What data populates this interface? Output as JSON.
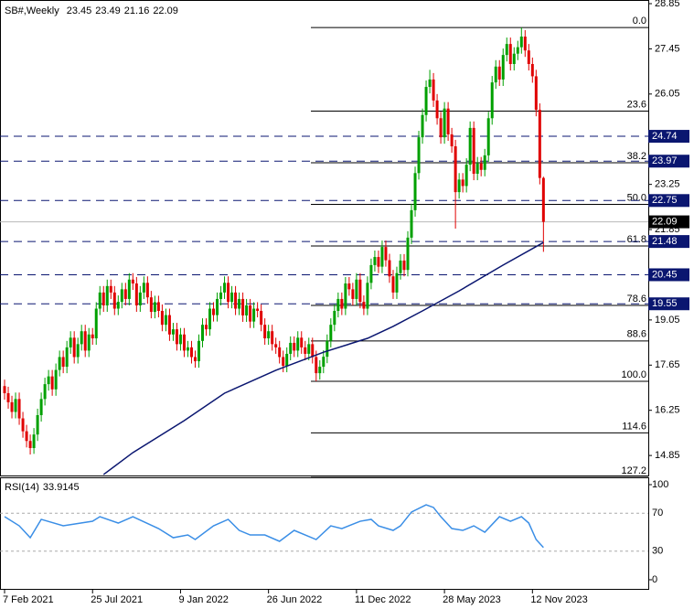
{
  "chart_data": {
    "type": "candlestick",
    "symbol": "SB#,Weekly",
    "up_color": "#00a000",
    "down_color": "#e00000",
    "ylim": [
      14.23,
      28.85
    ],
    "yticks": [
      28.85,
      27.45,
      26.05,
      23.25,
      21.85,
      19.05,
      17.65,
      16.25,
      14.85
    ],
    "xlim": [
      -1.25,
      175.6
    ],
    "xticks": [
      {
        "value": 0,
        "label": "7 Feb 2021"
      },
      {
        "value": 24,
        "label": "25 Jul 2021"
      },
      {
        "value": 48,
        "label": "9 Jan 2022"
      },
      {
        "value": 72,
        "label": "26 Jun 2022"
      },
      {
        "value": 96,
        "label": "11 Dec 2022"
      },
      {
        "value": 120,
        "label": "28 May 2023"
      },
      {
        "value": 144,
        "label": "12 Nov 2023"
      }
    ],
    "candles": [
      [
        17.0,
        17.2,
        16.58,
        16.78
      ],
      [
        16.78,
        16.98,
        16.3,
        16.5
      ],
      [
        16.5,
        16.7,
        16.0,
        16.2
      ],
      [
        16.2,
        16.8,
        16.0,
        16.6
      ],
      [
        16.6,
        16.8,
        15.8,
        16.0
      ],
      [
        16.0,
        16.2,
        15.4,
        15.6
      ],
      [
        15.6,
        15.8,
        15.1,
        15.3
      ],
      [
        15.3,
        15.5,
        14.88,
        15.08
      ],
      [
        15.08,
        15.7,
        14.9,
        15.5
      ],
      [
        15.5,
        16.3,
        15.3,
        16.1
      ],
      [
        16.1,
        16.8,
        15.9,
        16.6
      ],
      [
        16.6,
        17.26,
        16.4,
        17.06
      ],
      [
        17.06,
        17.5,
        16.86,
        17.3
      ],
      [
        17.3,
        17.5,
        16.7,
        16.9
      ],
      [
        16.9,
        17.7,
        16.7,
        17.5
      ],
      [
        17.5,
        18.1,
        17.3,
        17.9
      ],
      [
        17.9,
        18.1,
        17.4,
        17.6
      ],
      [
        17.6,
        18.4,
        17.4,
        18.2
      ],
      [
        18.2,
        18.7,
        18.0,
        18.5
      ],
      [
        18.5,
        18.7,
        17.7,
        17.9
      ],
      [
        17.9,
        18.5,
        17.7,
        18.3
      ],
      [
        18.3,
        18.9,
        18.1,
        18.7
      ],
      [
        18.7,
        18.9,
        17.9,
        18.1
      ],
      [
        18.1,
        18.8,
        17.9,
        18.6
      ],
      [
        18.6,
        18.8,
        18.28,
        18.48
      ],
      [
        18.48,
        19.6,
        18.28,
        19.4
      ],
      [
        19.4,
        20.1,
        19.2,
        19.9
      ],
      [
        19.9,
        20.1,
        19.3,
        19.5
      ],
      [
        19.5,
        20.3,
        19.3,
        20.1
      ],
      [
        20.1,
        20.3,
        19.7,
        19.9
      ],
      [
        19.9,
        20.1,
        19.2,
        19.4
      ],
      [
        19.4,
        19.81,
        19.2,
        19.61
      ],
      [
        19.61,
        20.2,
        19.41,
        20.0
      ],
      [
        20.0,
        20.2,
        19.5,
        19.7
      ],
      [
        19.7,
        20.5,
        19.5,
        20.3
      ],
      [
        20.3,
        20.5,
        19.98,
        20.18
      ],
      [
        20.18,
        20.38,
        19.3,
        19.5
      ],
      [
        19.5,
        20.1,
        19.3,
        19.9
      ],
      [
        19.9,
        20.4,
        19.7,
        20.2
      ],
      [
        20.2,
        20.4,
        19.55,
        19.75
      ],
      [
        19.75,
        19.95,
        19.1,
        19.3
      ],
      [
        19.3,
        19.8,
        19.1,
        19.6
      ],
      [
        19.6,
        19.8,
        19.13,
        19.33
      ],
      [
        19.33,
        19.53,
        18.7,
        18.9
      ],
      [
        18.9,
        19.4,
        18.7,
        19.2
      ],
      [
        19.2,
        19.4,
        18.4,
        18.6
      ],
      [
        18.6,
        18.96,
        18.4,
        18.76
      ],
      [
        18.76,
        18.96,
        18.1,
        18.3
      ],
      [
        18.3,
        18.8,
        18.1,
        18.6
      ],
      [
        18.6,
        18.8,
        17.9,
        18.1
      ],
      [
        18.1,
        18.4,
        17.9,
        18.2
      ],
      [
        18.2,
        18.4,
        17.7,
        17.9
      ],
      [
        17.9,
        18.1,
        17.57,
        17.77
      ],
      [
        17.77,
        18.6,
        17.57,
        18.4
      ],
      [
        18.4,
        19.1,
        18.2,
        18.9
      ],
      [
        18.9,
        19.1,
        18.56,
        18.76
      ],
      [
        18.76,
        19.6,
        18.56,
        19.4
      ],
      [
        19.4,
        19.6,
        19.0,
        19.2
      ],
      [
        19.2,
        19.9,
        19.0,
        19.7
      ],
      [
        19.7,
        20.1,
        19.5,
        19.9
      ],
      [
        19.9,
        20.4,
        19.7,
        20.2
      ],
      [
        20.2,
        20.4,
        19.41,
        19.61
      ],
      [
        19.61,
        20.1,
        19.41,
        19.9
      ],
      [
        19.9,
        20.1,
        19.2,
        19.4
      ],
      [
        19.4,
        19.9,
        19.2,
        19.7
      ],
      [
        19.7,
        19.9,
        18.99,
        19.19
      ],
      [
        19.19,
        19.7,
        18.99,
        19.5
      ],
      [
        19.5,
        19.7,
        18.8,
        19.0
      ],
      [
        19.0,
        19.6,
        18.8,
        19.4
      ],
      [
        19.4,
        19.6,
        19.13,
        19.33
      ],
      [
        19.33,
        19.53,
        18.7,
        18.9
      ],
      [
        18.9,
        19.1,
        18.28,
        18.48
      ],
      [
        18.48,
        18.9,
        18.28,
        18.7
      ],
      [
        18.7,
        18.9,
        18.1,
        18.3
      ],
      [
        18.3,
        18.5,
        18.0,
        18.2
      ],
      [
        18.2,
        18.4,
        17.7,
        17.9
      ],
      [
        17.9,
        18.1,
        17.43,
        17.63
      ],
      [
        17.63,
        18.2,
        17.43,
        18.0
      ],
      [
        18.0,
        18.54,
        17.8,
        18.34
      ],
      [
        18.34,
        18.54,
        17.9,
        18.1
      ],
      [
        18.1,
        18.7,
        17.9,
        18.5
      ],
      [
        18.5,
        18.7,
        18.0,
        18.2
      ],
      [
        18.2,
        18.4,
        17.8,
        18.0
      ],
      [
        18.0,
        18.5,
        17.8,
        18.3
      ],
      [
        18.3,
        18.5,
        17.7,
        17.9
      ],
      [
        17.9,
        18.1,
        17.15,
        17.4
      ],
      [
        17.4,
        17.8,
        17.2,
        17.6
      ],
      [
        17.6,
        18.11,
        17.4,
        17.91
      ],
      [
        17.91,
        18.6,
        17.71,
        18.4
      ],
      [
        18.4,
        19.1,
        18.2,
        18.9
      ],
      [
        18.9,
        19.53,
        18.7,
        19.33
      ],
      [
        19.33,
        19.9,
        19.13,
        19.7
      ],
      [
        19.7,
        19.9,
        19.2,
        19.4
      ],
      [
        19.4,
        20.38,
        19.2,
        20.18
      ],
      [
        20.18,
        20.38,
        19.8,
        20.0
      ],
      [
        20.0,
        20.2,
        19.5,
        19.7
      ],
      [
        19.7,
        20.5,
        19.5,
        20.3
      ],
      [
        20.3,
        20.5,
        19.41,
        19.61
      ],
      [
        19.61,
        19.81,
        19.2,
        19.4
      ],
      [
        19.4,
        20.4,
        19.2,
        20.2
      ],
      [
        20.2,
        20.95,
        20.0,
        20.75
      ],
      [
        20.75,
        21.2,
        20.55,
        21.0
      ],
      [
        21.0,
        21.2,
        20.5,
        20.7
      ],
      [
        20.7,
        21.51,
        20.5,
        21.31
      ],
      [
        21.31,
        21.51,
        20.7,
        20.9
      ],
      [
        20.9,
        21.1,
        20.2,
        20.4
      ],
      [
        20.4,
        20.6,
        19.7,
        19.9
      ],
      [
        19.9,
        20.7,
        19.7,
        20.5
      ],
      [
        20.5,
        21.09,
        20.3,
        20.89
      ],
      [
        20.89,
        21.09,
        20.4,
        20.6
      ],
      [
        20.6,
        21.8,
        20.4,
        21.6
      ],
      [
        21.6,
        22.65,
        21.4,
        22.45
      ],
      [
        22.45,
        23.8,
        22.25,
        23.6
      ],
      [
        23.6,
        24.91,
        23.4,
        24.71
      ],
      [
        24.71,
        25.6,
        24.51,
        25.4
      ],
      [
        25.4,
        26.47,
        25.2,
        26.27
      ],
      [
        26.27,
        26.8,
        26.07,
        26.5
      ],
      [
        26.5,
        26.7,
        25.65,
        25.85
      ],
      [
        25.85,
        26.05,
        25.1,
        25.3
      ],
      [
        25.3,
        25.5,
        24.51,
        24.71
      ],
      [
        24.71,
        25.8,
        24.51,
        25.6
      ],
      [
        25.6,
        25.8,
        24.6,
        24.8
      ],
      [
        24.8,
        25.0,
        24.23,
        24.43
      ],
      [
        24.43,
        24.63,
        21.88,
        23.01
      ],
      [
        23.01,
        23.6,
        22.81,
        23.4
      ],
      [
        23.4,
        23.6,
        23.0,
        23.2
      ],
      [
        23.2,
        24.06,
        23.0,
        23.86
      ],
      [
        23.86,
        25.2,
        23.66,
        25.0
      ],
      [
        25.0,
        25.2,
        23.38,
        23.58
      ],
      [
        23.58,
        24.1,
        23.38,
        23.9
      ],
      [
        23.9,
        24.1,
        23.5,
        23.7
      ],
      [
        23.7,
        24.35,
        23.5,
        24.15
      ],
      [
        24.15,
        25.5,
        23.95,
        25.3
      ],
      [
        25.3,
        26.61,
        25.1,
        26.41
      ],
      [
        26.41,
        27.1,
        26.21,
        26.9
      ],
      [
        26.9,
        27.1,
        26.3,
        26.5
      ],
      [
        26.5,
        27.46,
        26.3,
        27.26
      ],
      [
        27.26,
        27.8,
        27.06,
        27.6
      ],
      [
        27.6,
        27.8,
        26.78,
        26.98
      ],
      [
        26.98,
        27.5,
        26.78,
        27.3
      ],
      [
        27.3,
        27.7,
        27.1,
        27.5
      ],
      [
        27.5,
        28.11,
        27.3,
        27.83
      ],
      [
        27.83,
        28.03,
        27.2,
        27.4
      ],
      [
        27.4,
        27.6,
        26.78,
        26.98
      ],
      [
        26.98,
        27.18,
        26.4,
        26.6
      ],
      [
        26.6,
        26.8,
        25.36,
        25.56
      ],
      [
        25.56,
        25.76,
        23.25,
        23.45
      ],
      [
        23.45,
        23.49,
        21.16,
        22.09
      ]
    ],
    "ma": {
      "color": "#0a1670",
      "x": [
        27,
        35,
        49,
        60,
        74,
        87,
        99,
        106,
        114,
        124,
        136,
        147
      ],
      "values": [
        14.26,
        14.94,
        15.93,
        16.78,
        17.49,
        18.05,
        18.48,
        18.85,
        19.33,
        19.95,
        20.75,
        21.45
      ]
    },
    "levels": {
      "color": "#0a1670",
      "values": [
        24.74,
        23.97,
        22.75,
        21.48,
        20.45,
        19.55
      ]
    },
    "fib": [
      {
        "label": "0.0",
        "price": 28.11
      },
      {
        "label": "23.6",
        "price": 25.52
      },
      {
        "label": "38.2",
        "price": 23.92
      },
      {
        "label": "50.0",
        "price": 22.63
      },
      {
        "label": "61.8",
        "price": 21.34
      },
      {
        "label": "78.6",
        "price": 19.5
      },
      {
        "label": "88.6",
        "price": 18.4
      },
      {
        "label": "100.0",
        "price": 17.15
      },
      {
        "label": "114.6",
        "price": 15.55
      },
      {
        "label": "127.2",
        "price": 14.17
      }
    ],
    "rsi": {
      "title": "RSI(14)",
      "color": "#3a8ee6",
      "ylim": [
        0,
        100
      ],
      "yticks": [
        0,
        30,
        70,
        100
      ],
      "x": [
        0,
        4,
        7,
        10,
        16,
        24,
        26,
        31,
        35,
        42,
        46,
        50,
        52,
        57,
        61,
        64,
        67,
        71,
        75,
        79,
        85,
        89,
        92,
        97,
        100,
        102,
        106,
        108,
        111,
        115,
        117,
        119,
        122,
        125,
        128,
        131,
        135,
        138,
        141,
        143,
        145,
        147
      ],
      "values": [
        66.3,
        56.7,
        44.2,
        63.5,
        56.7,
        61.5,
        66.3,
        59.6,
        66.3,
        53.8,
        44.2,
        47.1,
        42.3,
        56.7,
        63.5,
        51.9,
        47.1,
        47.1,
        40.4,
        51.9,
        42.3,
        56.7,
        53.8,
        61.5,
        63.5,
        56.7,
        51.9,
        56.7,
        71.2,
        78.8,
        76.0,
        66.3,
        53.8,
        51.9,
        56.7,
        50.0,
        66.3,
        61.5,
        66.3,
        59.6,
        42.3,
        33.9145
      ]
    }
  }
}
